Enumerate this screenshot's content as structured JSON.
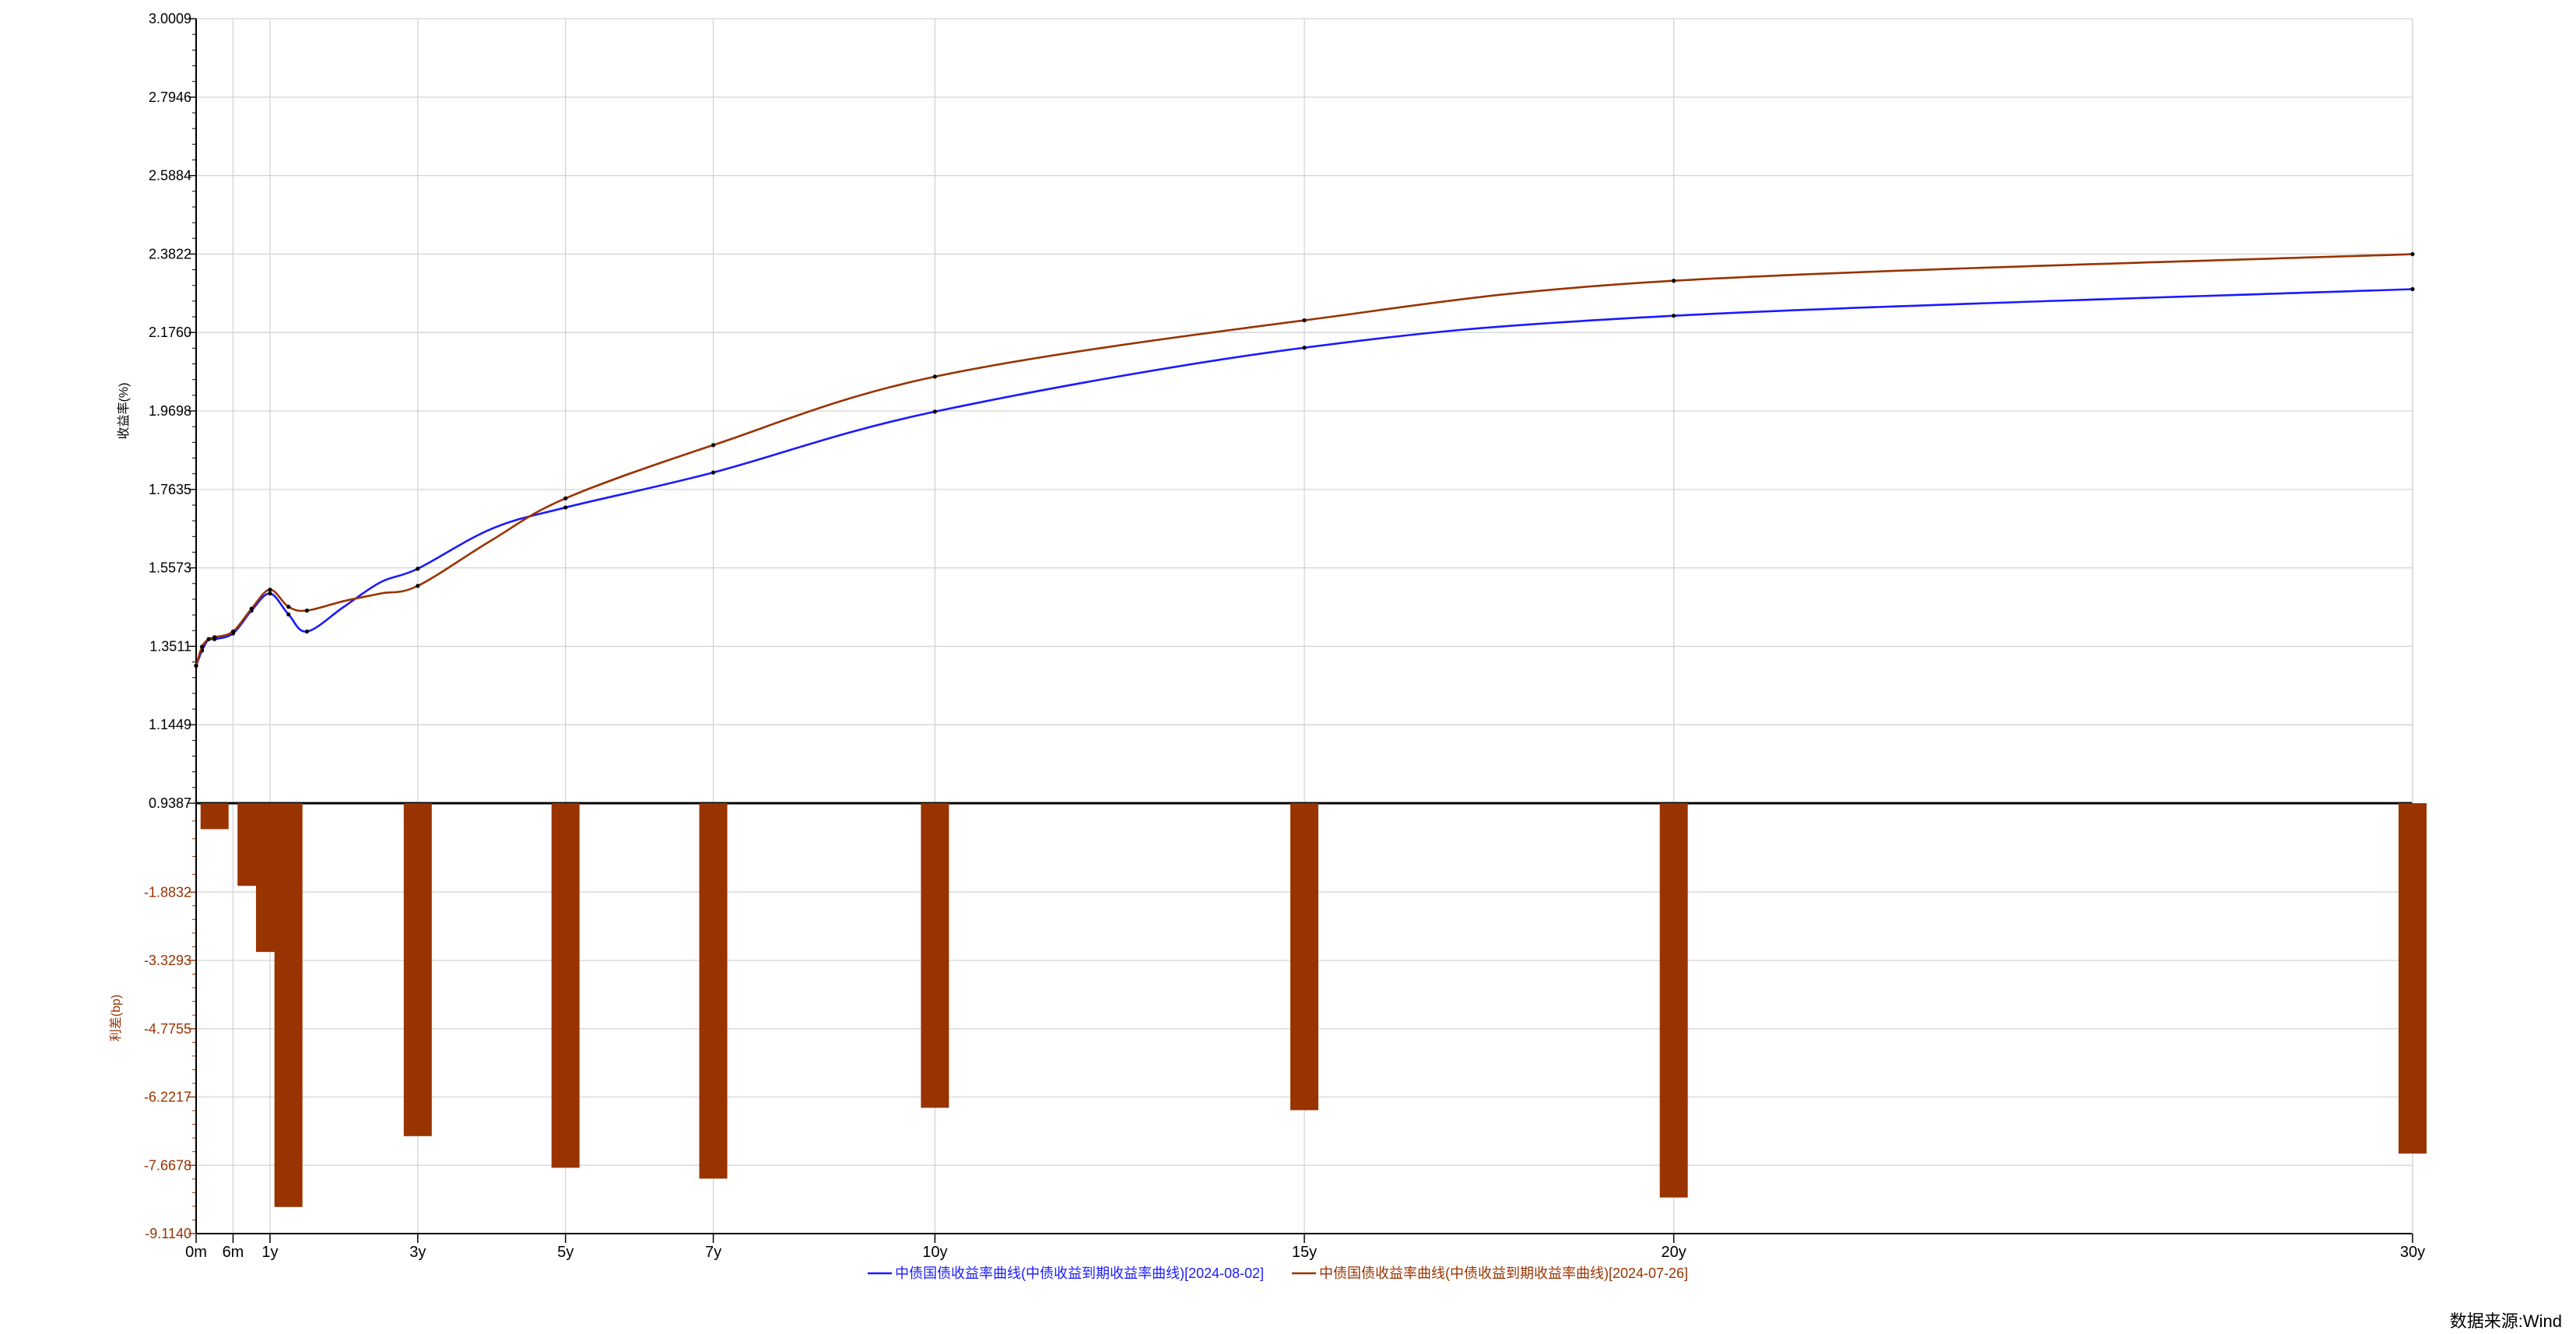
{
  "chart_data": {
    "type": "line",
    "x_categories": [
      "0m",
      "6m",
      "1y",
      "3y",
      "5y",
      "7y",
      "10y",
      "15y",
      "20y",
      "30y"
    ],
    "x_tenor_years": [
      0,
      0.5,
      1,
      3,
      5,
      7,
      10,
      15,
      20,
      30
    ],
    "xlim": [
      0,
      30
    ],
    "top_axis": {
      "label": "收益率(%)",
      "ylim": [
        0.9387,
        3.0009
      ],
      "ticks": [
        "3.0009",
        "2.7946",
        "2.5884",
        "2.3822",
        "2.1760",
        "1.9698",
        "1.7635",
        "1.5573",
        "1.3511",
        "1.1449",
        "0.9387"
      ]
    },
    "bottom_axis": {
      "label": "利差(bp)",
      "ylim": [
        -9.114,
        0
      ],
      "ticks": [
        "-1.8832",
        "-3.3293",
        "-4.7755",
        "-6.2217",
        "-7.6678",
        "-9.1140"
      ]
    },
    "series": [
      {
        "name": "中债国债收益率曲线(中债收益到期收益率曲线)[2024-08-02]",
        "color": "#1a1aff",
        "points": [
          [
            0,
            1.3
          ],
          [
            0.08,
            1.34
          ],
          [
            0.17,
            1.37
          ],
          [
            0.25,
            1.37
          ],
          [
            0.5,
            1.385
          ],
          [
            0.75,
            1.445
          ],
          [
            1,
            1.49
          ],
          [
            1.25,
            1.435
          ],
          [
            1.5,
            1.39
          ],
          [
            2,
            1.455
          ],
          [
            2.5,
            1.52
          ],
          [
            3,
            1.555
          ],
          [
            4,
            1.66
          ],
          [
            5,
            1.716
          ],
          [
            7,
            1.808
          ],
          [
            10,
            1.968
          ],
          [
            15,
            2.136
          ],
          [
            20,
            2.22
          ],
          [
            30,
            2.29
          ]
        ],
        "markers": [
          0,
          0.08,
          0.17,
          0.25,
          0.5,
          0.75,
          1,
          1.25,
          1.5,
          3,
          5,
          7,
          10,
          15,
          20,
          30
        ]
      },
      {
        "name": "中债国债收益率曲线(中债收益到期收益率曲线)[2024-07-26]",
        "color": "#993300",
        "points": [
          [
            0,
            1.3
          ],
          [
            0.08,
            1.35
          ],
          [
            0.17,
            1.37
          ],
          [
            0.25,
            1.375
          ],
          [
            0.5,
            1.39
          ],
          [
            0.75,
            1.45
          ],
          [
            1,
            1.5
          ],
          [
            1.25,
            1.455
          ],
          [
            1.5,
            1.445
          ],
          [
            2,
            1.47
          ],
          [
            2.5,
            1.49
          ],
          [
            3,
            1.51
          ],
          [
            4,
            1.63
          ],
          [
            5,
            1.74
          ],
          [
            7,
            1.88
          ],
          [
            10,
            2.06
          ],
          [
            15,
            2.208
          ],
          [
            20,
            2.312
          ],
          [
            30,
            2.382
          ]
        ],
        "markers": [
          0,
          0.08,
          0.17,
          0.25,
          0.5,
          0.75,
          1,
          1.25,
          1.5,
          3,
          5,
          7,
          10,
          15,
          20,
          30
        ]
      }
    ],
    "spread_bars": {
      "name": "利差(bp)",
      "color": "#993300",
      "x": [
        0.25,
        0.75,
        1,
        1.25,
        3,
        5,
        7,
        10,
        15,
        20,
        30
      ],
      "values": [
        -0.55,
        -1.75,
        -3.15,
        -8.55,
        -7.05,
        -7.72,
        -7.95,
        -6.45,
        -6.5,
        -8.35,
        -7.42
      ]
    },
    "grid": true,
    "legend_position": "bottom-center"
  },
  "source_text": "数据来源:Wind"
}
